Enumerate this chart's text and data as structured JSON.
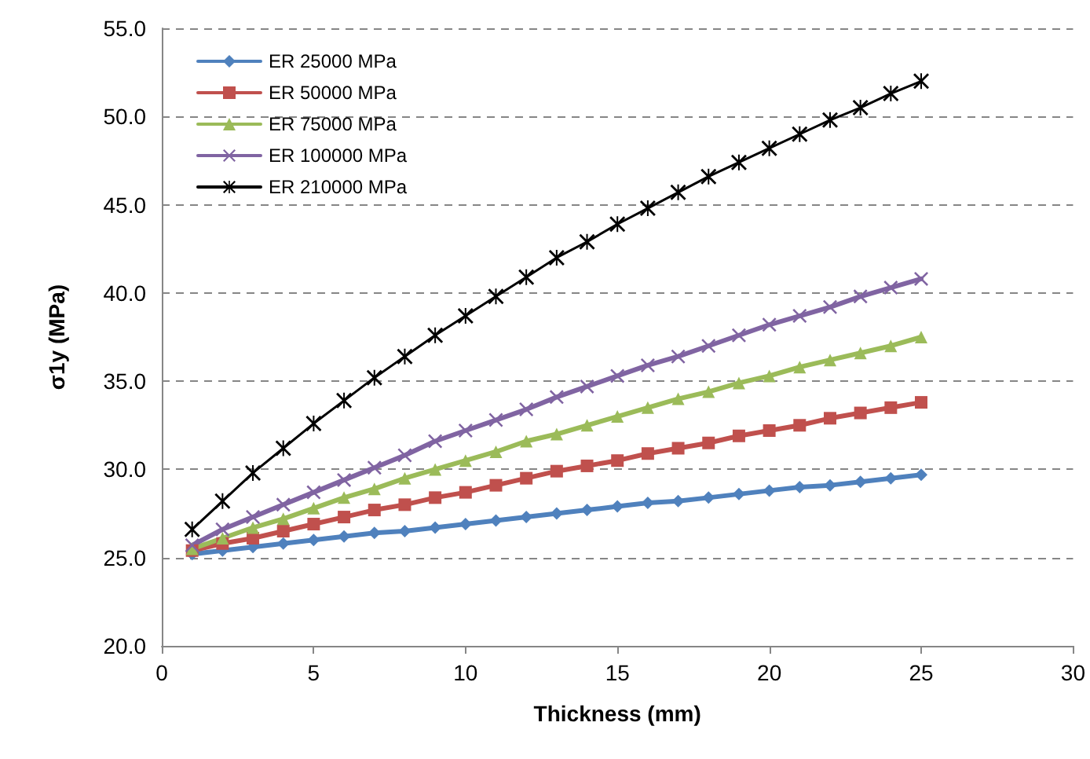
{
  "chart_data": {
    "type": "line",
    "xlabel": "Thickness (mm)",
    "ylabel": "σ1y (MPa)",
    "x": [
      1,
      2,
      3,
      4,
      5,
      6,
      7,
      8,
      9,
      10,
      11,
      12,
      13,
      14,
      15,
      16,
      17,
      18,
      19,
      20,
      21,
      22,
      23,
      24,
      25
    ],
    "series": [
      {
        "name": "ER 25000 MPa",
        "color": "#4f81bd",
        "marker": "diamond",
        "values": [
          25.2,
          25.4,
          25.6,
          25.8,
          26.0,
          26.2,
          26.4,
          26.5,
          26.7,
          26.9,
          27.1,
          27.3,
          27.5,
          27.7,
          27.9,
          28.1,
          28.2,
          28.4,
          28.6,
          28.8,
          29.0,
          29.1,
          29.3,
          29.5,
          29.7
        ]
      },
      {
        "name": "ER 50000 MPa",
        "color": "#c0504d",
        "marker": "square",
        "values": [
          25.4,
          25.8,
          26.1,
          26.5,
          26.9,
          27.3,
          27.7,
          28.0,
          28.4,
          28.7,
          29.1,
          29.5,
          29.9,
          30.2,
          30.5,
          30.9,
          31.2,
          31.5,
          31.9,
          32.2,
          32.5,
          32.9,
          33.2,
          33.5,
          33.8
        ]
      },
      {
        "name": "ER 75000 MPa",
        "color": "#9bbb59",
        "marker": "triangle",
        "values": [
          25.5,
          26.1,
          26.7,
          27.2,
          27.8,
          28.4,
          28.9,
          29.5,
          30.0,
          30.5,
          31.0,
          31.6,
          32.0,
          32.5,
          33.0,
          33.5,
          34.0,
          34.4,
          34.9,
          35.3,
          35.8,
          36.2,
          36.6,
          37.0,
          37.5
        ]
      },
      {
        "name": "ER 100000 MPa",
        "color": "#8064a2",
        "marker": "cross",
        "values": [
          25.7,
          26.6,
          27.3,
          28.0,
          28.7,
          29.4,
          30.1,
          30.8,
          31.6,
          32.2,
          32.8,
          33.4,
          34.1,
          34.7,
          35.3,
          35.9,
          36.4,
          37.0,
          37.6,
          38.2,
          38.7,
          39.2,
          39.8,
          40.3,
          40.8
        ]
      },
      {
        "name": "ER 210000 MPa",
        "color": "#000000",
        "marker": "star",
        "values": [
          26.6,
          28.2,
          29.8,
          31.2,
          32.6,
          33.9,
          35.2,
          36.4,
          37.6,
          38.7,
          39.8,
          40.9,
          42.0,
          42.9,
          43.9,
          44.8,
          45.7,
          46.6,
          47.4,
          48.2,
          49.0,
          49.8,
          50.5,
          51.3,
          52.0
        ]
      }
    ],
    "xlim": [
      0,
      30
    ],
    "xticks": [
      0,
      5,
      10,
      15,
      20,
      25,
      30
    ],
    "ylim": [
      20,
      55
    ],
    "yticks": [
      {
        "value": 20,
        "label": "20.0"
      },
      {
        "value": 25,
        "label": "25.0"
      },
      {
        "value": 30,
        "label": "30.0"
      },
      {
        "value": 35,
        "label": "35.0"
      },
      {
        "value": 40,
        "label": "40.0"
      },
      {
        "value": 45,
        "label": "45.0"
      },
      {
        "value": 50,
        "label": "50.0"
      },
      {
        "value": 55,
        "label": "55.0"
      }
    ],
    "grid": "y",
    "legend": "top left",
    "line_style": "solid"
  }
}
